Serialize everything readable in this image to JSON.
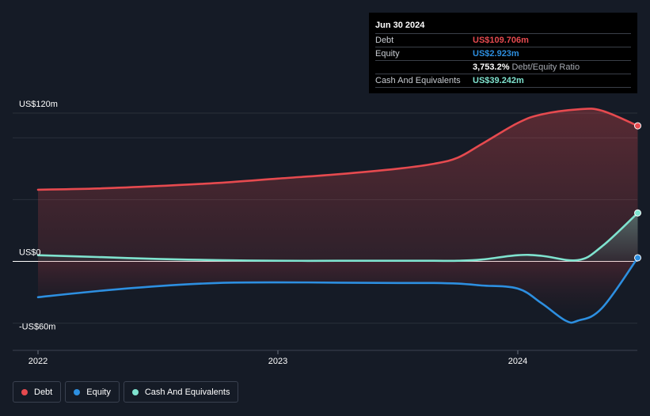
{
  "colors": {
    "background": "#151b26",
    "debt": "#e64a4f",
    "equity": "#2d8fe0",
    "cash": "#7fe3cf",
    "grid": "#2a303b"
  },
  "tooltip": {
    "date": "Jun 30 2024",
    "rows": [
      {
        "label": "Debt",
        "value": "US$109.706m"
      },
      {
        "label": "Equity",
        "value": "US$2.923m"
      },
      {
        "label": "",
        "value": "3,753.2%",
        "suffix": "Debt/Equity Ratio"
      },
      {
        "label": "Cash And Equivalents",
        "value": "US$39.242m"
      }
    ]
  },
  "legend": [
    {
      "label": "Debt",
      "icon": "debt-dot"
    },
    {
      "label": "Equity",
      "icon": "equity-dot"
    },
    {
      "label": "Cash And Equivalents",
      "icon": "cash-dot"
    }
  ],
  "chart_data": {
    "type": "area",
    "y_tick_labels": [
      "US$120m",
      "US$0",
      "-US$60m"
    ],
    "y_ticks": [
      120,
      0,
      -60
    ],
    "ylim": [
      -72,
      120
    ],
    "x_tick_labels": [
      "2022",
      "2023",
      "2024"
    ],
    "x_ticks": [
      2022,
      2023,
      2024
    ],
    "xlim": [
      2022,
      2024.5
    ],
    "grid": true,
    "legend_position": "bottom-left",
    "series": [
      {
        "name": "Debt",
        "x": [
          2022.0,
          2022.25,
          2022.5,
          2022.75,
          2023.0,
          2023.25,
          2023.5,
          2023.65,
          2023.75,
          2023.85,
          2024.0,
          2024.1,
          2024.25,
          2024.35,
          2024.5
        ],
        "values": [
          58,
          59,
          61,
          63.5,
          67,
          70.5,
          75,
          79,
          84,
          95,
          112,
          119,
          123,
          122,
          109.7
        ]
      },
      {
        "name": "Equity",
        "x": [
          2022.0,
          2022.25,
          2022.5,
          2022.75,
          2023.0,
          2023.25,
          2023.5,
          2023.65,
          2023.75,
          2023.85,
          2024.0,
          2024.1,
          2024.2,
          2024.25,
          2024.35,
          2024.5
        ],
        "values": [
          -29,
          -24,
          -20,
          -17.5,
          -17,
          -17.2,
          -17.5,
          -17.5,
          -18,
          -19.5,
          -22,
          -34,
          -48,
          -48,
          -38,
          2.9
        ]
      },
      {
        "name": "Cash And Equivalents",
        "x": [
          2022.0,
          2022.25,
          2022.5,
          2022.75,
          2023.0,
          2023.25,
          2023.5,
          2023.65,
          2023.75,
          2023.85,
          2024.0,
          2024.1,
          2024.25,
          2024.35,
          2024.5
        ],
        "values": [
          5,
          3.5,
          2,
          1,
          0.5,
          0.5,
          0.5,
          0.5,
          0.5,
          1.5,
          5,
          4.5,
          1,
          12,
          39.2
        ]
      }
    ]
  }
}
